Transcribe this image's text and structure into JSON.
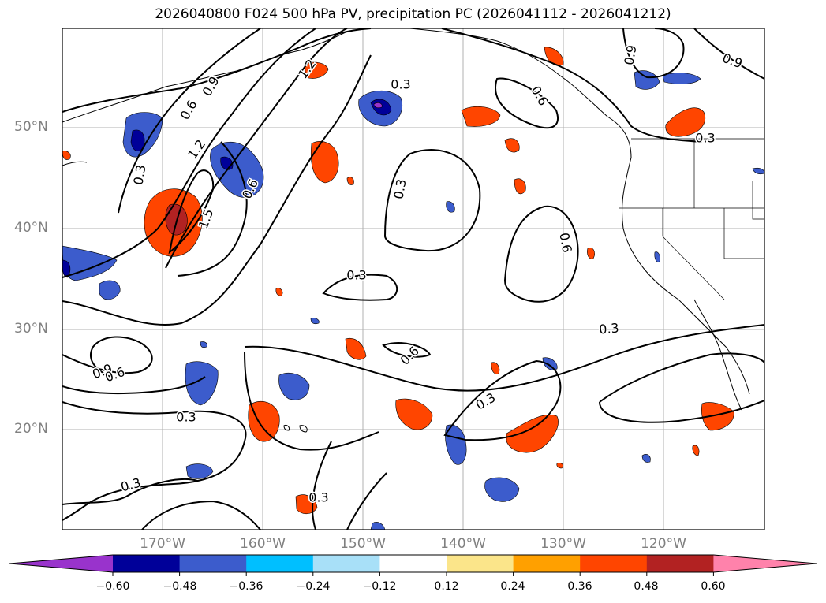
{
  "title": "2026040800 F024 500 hPa PV, precipitation PC (2026041112 - 2026041212)",
  "axes": {
    "lat_labels": [
      "50°N",
      "40°N",
      "30°N",
      "20°N"
    ],
    "lon_labels": [
      "170°W",
      "160°W",
      "150°W",
      "140°W",
      "130°W",
      "120°W"
    ]
  },
  "contour_labels": [
    "1.2",
    "0.9",
    "0.6",
    "1.2",
    "0.3",
    "1.5",
    "0.6",
    "0.3",
    "0.9",
    "0.9",
    "0.6",
    "0.3",
    "0.3",
    "0.6",
    "0.3",
    "0.6",
    "0.9",
    "0.6",
    "0.3",
    "0.3",
    "0.3",
    "0.3",
    "0.3"
  ],
  "colorbar": {
    "tick_labels": [
      "−0.60",
      "−0.48",
      "−0.36",
      "−0.24",
      "−0.12",
      "0.12",
      "0.24",
      "0.36",
      "0.48",
      "0.60"
    ],
    "colors": [
      "#9933cc",
      "#000099",
      "#3c5ccc",
      "#00bfff",
      "#a8e0f8",
      "#ffffff",
      "#fbe58a",
      "#ffa000",
      "#ff4500",
      "#b22222",
      "#ff82ab"
    ]
  }
}
